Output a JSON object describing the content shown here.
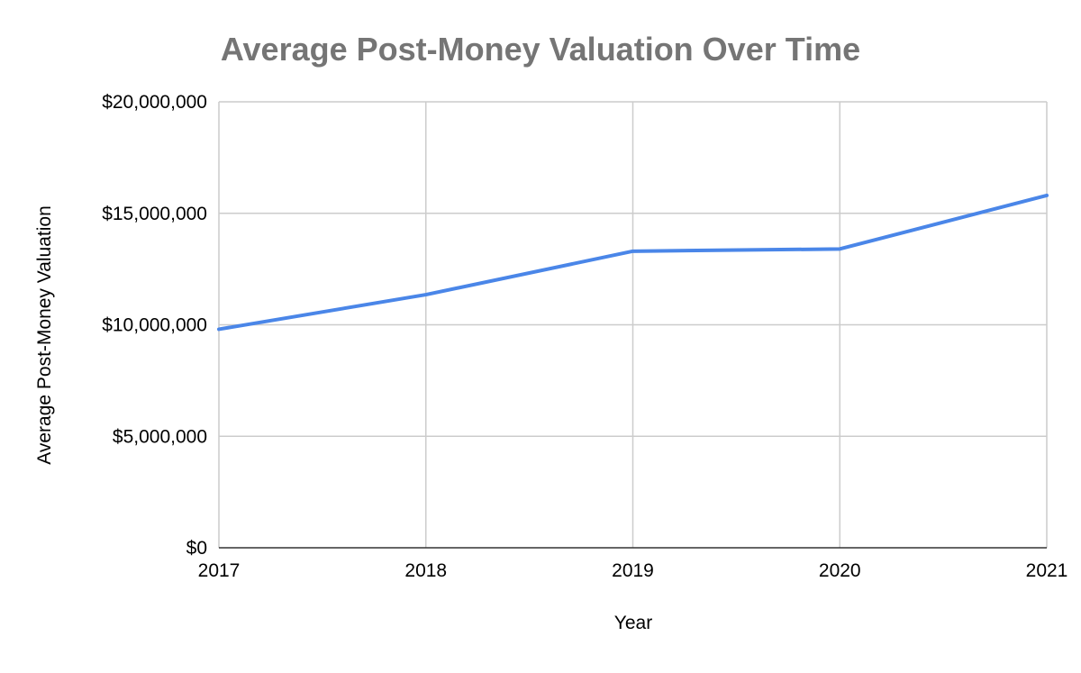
{
  "chart_data": {
    "type": "line",
    "title": "Average Post-Money Valuation Over Time",
    "xlabel": "Year",
    "ylabel": "Average Post-Money Valuation",
    "categories": [
      "2017",
      "2018",
      "2019",
      "2020",
      "2021"
    ],
    "series": [
      {
        "values": [
          9800000,
          11350000,
          13300000,
          13400000,
          15800000
        ],
        "color": "#4a86e8"
      }
    ],
    "ylim": [
      0,
      20000000
    ],
    "yticks": [
      0,
      5000000,
      10000000,
      15000000,
      20000000
    ],
    "ytick_labels": [
      "$0",
      "$5,000,000",
      "$10,000,000",
      "$15,000,000",
      "$20,000,000"
    ],
    "grid": true,
    "legend": "none"
  }
}
